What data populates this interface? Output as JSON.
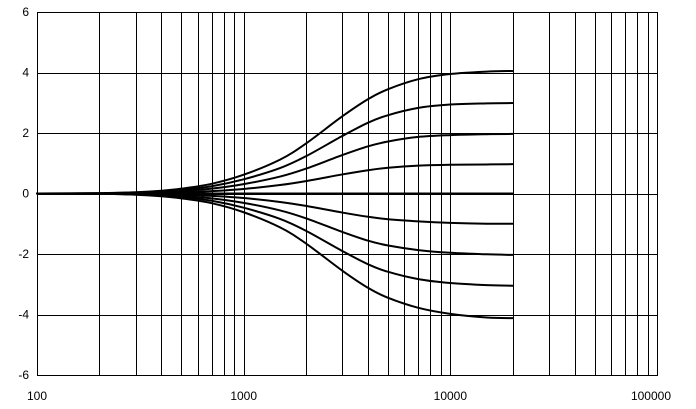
{
  "chart_data": {
    "type": "line",
    "title": "",
    "xlabel": "",
    "ylabel": "",
    "x_scale": "log",
    "xlim": [
      100,
      100000
    ],
    "ylim": [
      -6,
      6
    ],
    "grid": true,
    "legend": "none",
    "x_tick_labels": [
      "100",
      "1000",
      "10000",
      "100000"
    ],
    "x_tick_values": [
      100,
      1000,
      10000,
      100000
    ],
    "y_tick_labels": [
      "6",
      "4",
      "2",
      "0",
      "-2",
      "-4",
      "-6"
    ],
    "y_tick_values": [
      6,
      4,
      2,
      0,
      -2,
      -4,
      -6
    ],
    "x": [
      100,
      200,
      300,
      400,
      500,
      700,
      1000,
      1500,
      2000,
      3000,
      4000,
      5000,
      7000,
      10000,
      15000,
      20000
    ],
    "series": [
      {
        "values": [
          0,
          0.01,
          0.04,
          0.09,
          0.16,
          0.32,
          0.62,
          1.12,
          1.65,
          2.55,
          3.12,
          3.45,
          3.78,
          3.95,
          4.03,
          4.05
        ]
      },
      {
        "values": [
          0,
          0.01,
          0.03,
          0.07,
          0.12,
          0.24,
          0.47,
          0.84,
          1.23,
          1.9,
          2.34,
          2.59,
          2.83,
          2.94,
          2.98,
          2.99
        ]
      },
      {
        "values": [
          0,
          0.005,
          0.02,
          0.045,
          0.08,
          0.16,
          0.31,
          0.56,
          0.82,
          1.27,
          1.56,
          1.72,
          1.87,
          1.93,
          1.96,
          1.97
        ]
      },
      {
        "values": [
          0,
          0.003,
          0.01,
          0.02,
          0.04,
          0.08,
          0.15,
          0.28,
          0.41,
          0.63,
          0.77,
          0.85,
          0.92,
          0.95,
          0.96,
          0.97
        ]
      },
      {
        "values": [
          0,
          0,
          0,
          0,
          0,
          0,
          0,
          0,
          0,
          0,
          0,
          0,
          0,
          0,
          0,
          0
        ]
      },
      {
        "values": [
          0,
          -0.003,
          -0.01,
          -0.02,
          -0.04,
          -0.08,
          -0.15,
          -0.28,
          -0.41,
          -0.63,
          -0.77,
          -0.85,
          -0.92,
          -0.97,
          -1.0,
          -1.0
        ]
      },
      {
        "values": [
          0,
          -0.005,
          -0.02,
          -0.045,
          -0.08,
          -0.16,
          -0.31,
          -0.56,
          -0.82,
          -1.27,
          -1.56,
          -1.72,
          -1.87,
          -1.96,
          -2.01,
          -2.03
        ]
      },
      {
        "values": [
          0,
          -0.01,
          -0.03,
          -0.07,
          -0.12,
          -0.24,
          -0.47,
          -0.84,
          -1.23,
          -1.9,
          -2.34,
          -2.59,
          -2.83,
          -2.96,
          -3.03,
          -3.05
        ]
      },
      {
        "values": [
          0,
          -0.01,
          -0.04,
          -0.09,
          -0.16,
          -0.32,
          -0.62,
          -1.12,
          -1.65,
          -2.55,
          -3.12,
          -3.45,
          -3.78,
          -3.98,
          -4.1,
          -4.12
        ]
      }
    ]
  }
}
